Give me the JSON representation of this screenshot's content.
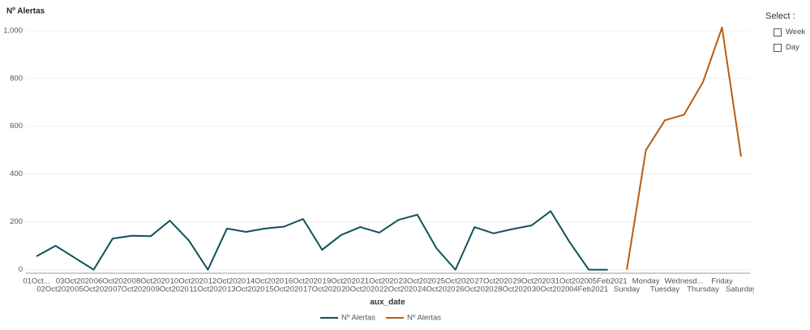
{
  "chart_data": {
    "type": "line",
    "y_label": "Nº Alertas",
    "x_label": "aux_date",
    "categories": [
      "01Oct...",
      "02Oct2020",
      "03Oct2020",
      "05Oct2020",
      "06Oct2020",
      "07Oct2020",
      "08Oct2020",
      "09Oct2020",
      "10Oct2020",
      "11Oct2020",
      "12Oct2020",
      "13Oct2020",
      "14Oct2020",
      "15Oct2020",
      "16Oct2020",
      "17Oct2020",
      "19Oct2020",
      "20Oct2020",
      "21Oct2020",
      "22Oct2020",
      "23Oct2020",
      "24Oct2020",
      "25Oct2020",
      "26Oct2020",
      "27Oct2020",
      "28Oct2020",
      "29Oct2020",
      "30Oct2020",
      "31Oct2020",
      "04Feb2021",
      "05Feb2021",
      "Sunday",
      "Monday",
      "Tuesday",
      "Wednesd...",
      "Thursday",
      "Friday",
      "Saturday"
    ],
    "series": [
      {
        "name": "Nº Alertas",
        "color": "#0d5257",
        "values": [
          56,
          100,
          50,
          0,
          130,
          142,
          140,
          205,
          122,
          0,
          172,
          158,
          172,
          180,
          212,
          83,
          145,
          178,
          155,
          208,
          230,
          90,
          0,
          178,
          152,
          170,
          185,
          245,
          115,
          0,
          0,
          null,
          null,
          null,
          null,
          null,
          null,
          null
        ]
      },
      {
        "name": "Nº Alertas",
        "color": "#b85c0f",
        "values": [
          null,
          null,
          null,
          null,
          null,
          null,
          null,
          null,
          null,
          null,
          null,
          null,
          null,
          null,
          null,
          null,
          null,
          null,
          null,
          null,
          null,
          null,
          null,
          null,
          null,
          null,
          null,
          null,
          null,
          null,
          null,
          0,
          500,
          625,
          648,
          785,
          1013,
          473
        ]
      }
    ],
    "ylim": [
      -15,
      1040
    ],
    "yticks": [
      0,
      200,
      400,
      600,
      800,
      {
        "value": 1000,
        "label": "1,000"
      }
    ],
    "grid": true,
    "legend": "bottom",
    "select": {
      "title": "Select :",
      "options": [
        "Week",
        "Day"
      ]
    }
  }
}
